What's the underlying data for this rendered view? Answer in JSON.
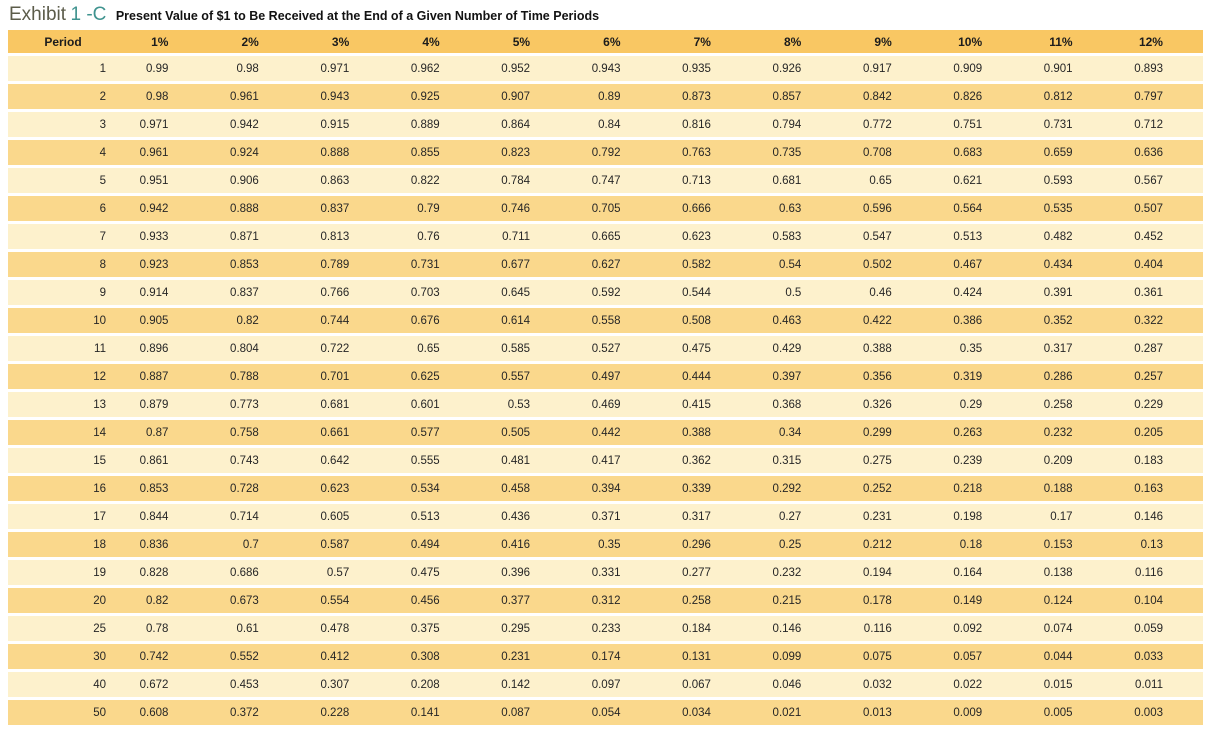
{
  "title": {
    "exhibit_label": "Exhibit",
    "exhibit_number": "1 -C",
    "subtitle": "Present Value of $1 to Be Received at the End of a Given Number of Time Periods"
  },
  "colors": {
    "header_bg": "#f9c763",
    "row_odd_bg": "#fdf1cc",
    "row_even_bg": "#fad88c",
    "exhibit_label_color": "#5c5c4a",
    "exhibit_number_color": "#3f938f"
  },
  "table": {
    "columns": [
      "Period",
      "1%",
      "2%",
      "3%",
      "4%",
      "5%",
      "6%",
      "7%",
      "8%",
      "9%",
      "10%",
      "11%",
      "12%"
    ],
    "rows": [
      {
        "period": "1",
        "values": [
          "0.99",
          "0.98",
          "0.971",
          "0.962",
          "0.952",
          "0.943",
          "0.935",
          "0.926",
          "0.917",
          "0.909",
          "0.901",
          "0.893"
        ]
      },
      {
        "period": "2",
        "values": [
          "0.98",
          "0.961",
          "0.943",
          "0.925",
          "0.907",
          "0.89",
          "0.873",
          "0.857",
          "0.842",
          "0.826",
          "0.812",
          "0.797"
        ]
      },
      {
        "period": "3",
        "values": [
          "0.971",
          "0.942",
          "0.915",
          "0.889",
          "0.864",
          "0.84",
          "0.816",
          "0.794",
          "0.772",
          "0.751",
          "0.731",
          "0.712"
        ]
      },
      {
        "period": "4",
        "values": [
          "0.961",
          "0.924",
          "0.888",
          "0.855",
          "0.823",
          "0.792",
          "0.763",
          "0.735",
          "0.708",
          "0.683",
          "0.659",
          "0.636"
        ]
      },
      {
        "period": "5",
        "values": [
          "0.951",
          "0.906",
          "0.863",
          "0.822",
          "0.784",
          "0.747",
          "0.713",
          "0.681",
          "0.65",
          "0.621",
          "0.593",
          "0.567"
        ]
      },
      {
        "period": "6",
        "values": [
          "0.942",
          "0.888",
          "0.837",
          "0.79",
          "0.746",
          "0.705",
          "0.666",
          "0.63",
          "0.596",
          "0.564",
          "0.535",
          "0.507"
        ]
      },
      {
        "period": "7",
        "values": [
          "0.933",
          "0.871",
          "0.813",
          "0.76",
          "0.711",
          "0.665",
          "0.623",
          "0.583",
          "0.547",
          "0.513",
          "0.482",
          "0.452"
        ]
      },
      {
        "period": "8",
        "values": [
          "0.923",
          "0.853",
          "0.789",
          "0.731",
          "0.677",
          "0.627",
          "0.582",
          "0.54",
          "0.502",
          "0.467",
          "0.434",
          "0.404"
        ]
      },
      {
        "period": "9",
        "values": [
          "0.914",
          "0.837",
          "0.766",
          "0.703",
          "0.645",
          "0.592",
          "0.544",
          "0.5",
          "0.46",
          "0.424",
          "0.391",
          "0.361"
        ]
      },
      {
        "period": "10",
        "values": [
          "0.905",
          "0.82",
          "0.744",
          "0.676",
          "0.614",
          "0.558",
          "0.508",
          "0.463",
          "0.422",
          "0.386",
          "0.352",
          "0.322"
        ]
      },
      {
        "period": "11",
        "values": [
          "0.896",
          "0.804",
          "0.722",
          "0.65",
          "0.585",
          "0.527",
          "0.475",
          "0.429",
          "0.388",
          "0.35",
          "0.317",
          "0.287"
        ]
      },
      {
        "period": "12",
        "values": [
          "0.887",
          "0.788",
          "0.701",
          "0.625",
          "0.557",
          "0.497",
          "0.444",
          "0.397",
          "0.356",
          "0.319",
          "0.286",
          "0.257"
        ]
      },
      {
        "period": "13",
        "values": [
          "0.879",
          "0.773",
          "0.681",
          "0.601",
          "0.53",
          "0.469",
          "0.415",
          "0.368",
          "0.326",
          "0.29",
          "0.258",
          "0.229"
        ]
      },
      {
        "period": "14",
        "values": [
          "0.87",
          "0.758",
          "0.661",
          "0.577",
          "0.505",
          "0.442",
          "0.388",
          "0.34",
          "0.299",
          "0.263",
          "0.232",
          "0.205"
        ]
      },
      {
        "period": "15",
        "values": [
          "0.861",
          "0.743",
          "0.642",
          "0.555",
          "0.481",
          "0.417",
          "0.362",
          "0.315",
          "0.275",
          "0.239",
          "0.209",
          "0.183"
        ]
      },
      {
        "period": "16",
        "values": [
          "0.853",
          "0.728",
          "0.623",
          "0.534",
          "0.458",
          "0.394",
          "0.339",
          "0.292",
          "0.252",
          "0.218",
          "0.188",
          "0.163"
        ]
      },
      {
        "period": "17",
        "values": [
          "0.844",
          "0.714",
          "0.605",
          "0.513",
          "0.436",
          "0.371",
          "0.317",
          "0.27",
          "0.231",
          "0.198",
          "0.17",
          "0.146"
        ]
      },
      {
        "period": "18",
        "values": [
          "0.836",
          "0.7",
          "0.587",
          "0.494",
          "0.416",
          "0.35",
          "0.296",
          "0.25",
          "0.212",
          "0.18",
          "0.153",
          "0.13"
        ]
      },
      {
        "period": "19",
        "values": [
          "0.828",
          "0.686",
          "0.57",
          "0.475",
          "0.396",
          "0.331",
          "0.277",
          "0.232",
          "0.194",
          "0.164",
          "0.138",
          "0.116"
        ]
      },
      {
        "period": "20",
        "values": [
          "0.82",
          "0.673",
          "0.554",
          "0.456",
          "0.377",
          "0.312",
          "0.258",
          "0.215",
          "0.178",
          "0.149",
          "0.124",
          "0.104"
        ]
      },
      {
        "period": "25",
        "values": [
          "0.78",
          "0.61",
          "0.478",
          "0.375",
          "0.295",
          "0.233",
          "0.184",
          "0.146",
          "0.116",
          "0.092",
          "0.074",
          "0.059"
        ]
      },
      {
        "period": "30",
        "values": [
          "0.742",
          "0.552",
          "0.412",
          "0.308",
          "0.231",
          "0.174",
          "0.131",
          "0.099",
          "0.075",
          "0.057",
          "0.044",
          "0.033"
        ]
      },
      {
        "period": "40",
        "values": [
          "0.672",
          "0.453",
          "0.307",
          "0.208",
          "0.142",
          "0.097",
          "0.067",
          "0.046",
          "0.032",
          "0.022",
          "0.015",
          "0.011"
        ]
      },
      {
        "period": "50",
        "values": [
          "0.608",
          "0.372",
          "0.228",
          "0.141",
          "0.087",
          "0.054",
          "0.034",
          "0.021",
          "0.013",
          "0.009",
          "0.005",
          "0.003"
        ]
      }
    ]
  }
}
